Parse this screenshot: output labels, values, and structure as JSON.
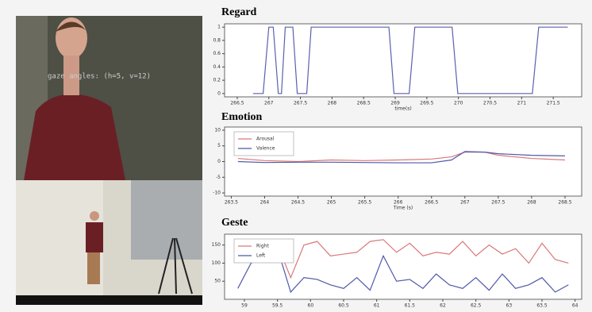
{
  "video": {
    "overlay": "gaze angles: (h=5, v=12)"
  },
  "chart_data": [
    {
      "type": "line",
      "title": "Regard",
      "x_label": "time(s)",
      "color": "#5b5fb0",
      "x": [
        266.75,
        266.91,
        267.0,
        267.07,
        267.15,
        267.2,
        267.26,
        267.38,
        267.45,
        267.6,
        267.67,
        268.9,
        268.98,
        269.22,
        269.31,
        269.9,
        269.99,
        271.17,
        271.27,
        271.73
      ],
      "values": [
        0,
        0,
        1,
        1,
        0,
        0,
        1,
        1,
        0,
        0,
        1,
        1,
        0,
        0,
        1,
        1,
        0,
        0,
        1,
        1
      ],
      "xlim": [
        266.3,
        271.95
      ],
      "ylim": [
        -0.05,
        1.05
      ],
      "xticks": [
        266.5,
        267,
        267.5,
        268,
        268.5,
        269,
        269.5,
        270,
        270.5,
        271,
        271.5
      ],
      "yticks": [
        0,
        0.2,
        0.4,
        0.6,
        0.8,
        1
      ]
    },
    {
      "type": "line",
      "title": "Emotion",
      "x_label": "Time (s)",
      "legend": "upper left",
      "x": [
        263.6,
        264,
        264.5,
        265,
        265.5,
        266,
        266.5,
        266.8,
        267,
        267.3,
        267.5,
        268,
        268.5
      ],
      "series": [
        {
          "name": "Arousal",
          "color": "#d9777a",
          "values": [
            1,
            0.3,
            0,
            0.5,
            0.3,
            0.5,
            0.8,
            1.5,
            3,
            3,
            2,
            1,
            0.5
          ]
        },
        {
          "name": "Valence",
          "color": "#4f58a8",
          "values": [
            0,
            -0.3,
            -0.2,
            -0.2,
            -0.3,
            -0.4,
            -0.4,
            0.5,
            3.2,
            3,
            2.5,
            2,
            1.8
          ]
        }
      ],
      "xlim": [
        263.4,
        268.75
      ],
      "ylim": [
        -11,
        11
      ],
      "xticks": [
        263.5,
        264,
        264.5,
        265,
        265.5,
        266,
        266.5,
        267,
        267.5,
        268,
        268.5
      ],
      "yticks": [
        -10,
        -5,
        0,
        5,
        10
      ]
    },
    {
      "type": "line",
      "title": "Geste",
      "legend": "upper left",
      "x": [
        58.9,
        59.1,
        59.3,
        59.5,
        59.7,
        59.9,
        60.1,
        60.3,
        60.5,
        60.7,
        60.9,
        61.1,
        61.3,
        61.5,
        61.7,
        61.9,
        62.1,
        62.3,
        62.5,
        62.7,
        62.9,
        63.1,
        63.3,
        63.5,
        63.7,
        63.9
      ],
      "series": [
        {
          "name": "Right",
          "color": "#d9777a",
          "values": [
            145,
            150,
            155,
            150,
            60,
            150,
            160,
            120,
            125,
            130,
            160,
            165,
            130,
            155,
            120,
            130,
            125,
            160,
            120,
            150,
            125,
            140,
            100,
            155,
            110,
            100
          ]
        },
        {
          "name": "Left",
          "color": "#4f58a8",
          "values": [
            30,
            100,
            120,
            140,
            20,
            60,
            55,
            40,
            30,
            60,
            25,
            120,
            50,
            55,
            30,
            70,
            40,
            30,
            60,
            25,
            70,
            30,
            40,
            60,
            20,
            40
          ]
        }
      ],
      "xlim": [
        58.7,
        64.1
      ],
      "ylim": [
        0,
        180
      ],
      "xticks": [
        59,
        59.5,
        60,
        60.5,
        61,
        61.5,
        62,
        62.5,
        63,
        63.5,
        64
      ],
      "yticks": [
        50,
        100,
        150
      ]
    }
  ]
}
